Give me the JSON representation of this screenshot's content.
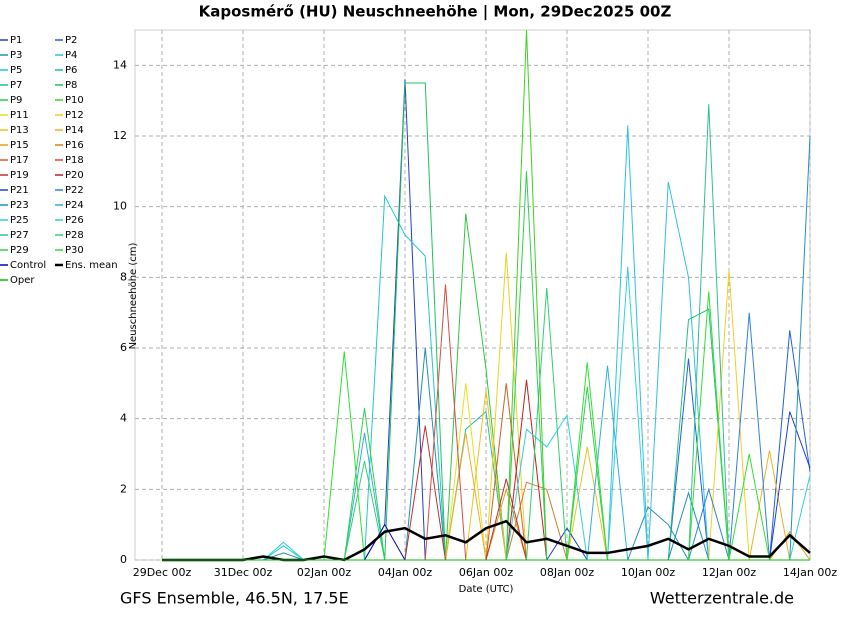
{
  "chart_data": {
    "type": "line",
    "title": "Kaposmérő  (HU)  Neuschneehöhe | Mon, 29Dec2025 00Z",
    "y_label": "Neuschneehöhe (cm)",
    "x_label": "Date (UTC)",
    "footer_left": "GFS Ensemble, 46.5N, 17.5E",
    "footer_right": "Wetterzentrale.de",
    "categories": [
      "29Dec 00z",
      null,
      null,
      null,
      "31Dec 00z",
      null,
      null,
      null,
      "02Jan 00z",
      null,
      null,
      null,
      "04Jan 00z",
      null,
      null,
      null,
      "06Jan 00z",
      null,
      null,
      null,
      "08Jan 00z",
      null,
      null,
      null,
      "10Jan 00z",
      null,
      null,
      null,
      "12Jan 00z",
      null,
      null,
      null,
      "14Jan 00z"
    ],
    "ylim": [
      0,
      15
    ],
    "yticks": [
      0,
      2,
      4,
      6,
      8,
      10,
      12,
      14
    ],
    "grid": true,
    "series": [
      {
        "name": "P1",
        "color": "#2040c0",
        "values": [
          0,
          0,
          0,
          0,
          0,
          0,
          0,
          0,
          0,
          0,
          0,
          1,
          13.6,
          0,
          0,
          0,
          0,
          0,
          0,
          0,
          0,
          0,
          0,
          0,
          0,
          0,
          0,
          0,
          0,
          0,
          0,
          0,
          0
        ]
      },
      {
        "name": "P2",
        "color": "#2060e0",
        "values": [
          0,
          0,
          0,
          0,
          0,
          0,
          0,
          0,
          0,
          0,
          0,
          0,
          0,
          0,
          0,
          0,
          0,
          0,
          0,
          0,
          0,
          0,
          0,
          0,
          0,
          0,
          5.7,
          0,
          0,
          0,
          0,
          6.5,
          2.5
        ]
      },
      {
        "name": "P3",
        "color": "#2090b0",
        "values": [
          0,
          0,
          0,
          0,
          0,
          0,
          0.2,
          0,
          0,
          0,
          0,
          0,
          0,
          6,
          0,
          0,
          0,
          0,
          0,
          0,
          0,
          0,
          0,
          0,
          1.5,
          1,
          0,
          0,
          0,
          0,
          0,
          0,
          0
        ]
      },
      {
        "name": "P4",
        "color": "#30c0e0",
        "values": [
          0,
          0,
          0,
          0,
          0,
          0,
          0,
          0,
          0,
          0,
          0,
          0,
          0,
          0,
          0,
          0,
          0,
          0,
          0,
          0,
          0,
          0,
          0,
          12.3,
          0,
          10.7,
          8,
          0,
          0,
          0,
          0,
          0,
          0
        ]
      },
      {
        "name": "P5",
        "color": "#20c8c8",
        "values": [
          0,
          0,
          0,
          0,
          0,
          0,
          0.4,
          0,
          0,
          0,
          0,
          10.3,
          9.2,
          8.6,
          0,
          0,
          0,
          0,
          0,
          0,
          0,
          0,
          0,
          0,
          0,
          0,
          0,
          0,
          0,
          0,
          0,
          0,
          0
        ]
      },
      {
        "name": "P6",
        "color": "#20c0a0",
        "values": [
          0,
          0,
          0,
          0,
          0,
          0,
          0,
          0,
          0,
          0,
          0,
          0,
          0,
          0,
          0,
          3.7,
          4.2,
          0,
          0,
          0,
          0,
          0,
          0,
          0,
          0,
          0,
          0,
          0,
          0,
          0,
          0,
          0,
          0
        ]
      },
      {
        "name": "P7",
        "color": "#20c080",
        "values": [
          0,
          0,
          0,
          0,
          0,
          0,
          0,
          0,
          0,
          0,
          0,
          0,
          0,
          0,
          0,
          0,
          0,
          0,
          0,
          0,
          0,
          0,
          0,
          0,
          0,
          0,
          6.8,
          7.1,
          0,
          0,
          0,
          0,
          0
        ]
      },
      {
        "name": "P8",
        "color": "#20c060",
        "values": [
          0,
          0,
          0,
          0,
          0,
          0,
          0,
          0,
          0,
          0,
          0,
          0,
          13.5,
          13.5,
          0,
          0,
          0,
          0,
          0,
          0,
          0,
          0,
          0,
          0,
          0,
          0,
          0,
          0,
          0,
          0,
          0,
          0,
          0
        ]
      },
      {
        "name": "P9",
        "color": "#30c840",
        "values": [
          0,
          0,
          0,
          0,
          0,
          0,
          0,
          0,
          0,
          0,
          0,
          0,
          0,
          0,
          0,
          9.8,
          5.4,
          0,
          0,
          0,
          0,
          0,
          0,
          0,
          0,
          0,
          0,
          0,
          0,
          0,
          0,
          0,
          0
        ]
      },
      {
        "name": "P10",
        "color": "#40d020",
        "values": [
          0,
          0,
          0,
          0,
          0,
          0,
          0,
          0,
          0,
          0,
          0,
          0,
          0,
          0,
          0,
          0,
          0,
          0,
          15,
          0,
          0,
          0,
          0,
          0,
          0,
          0,
          0,
          0,
          0,
          0,
          0,
          0,
          0
        ]
      },
      {
        "name": "P11",
        "color": "#e8e020",
        "values": [
          0,
          0,
          0,
          0,
          0,
          0,
          0,
          0,
          0,
          0,
          0,
          0,
          0,
          0,
          0,
          5,
          0,
          0,
          0,
          0,
          0,
          0,
          0,
          0,
          0,
          0,
          0,
          0,
          0,
          0,
          0,
          0,
          0
        ]
      },
      {
        "name": "P12",
        "color": "#f0d020",
        "values": [
          0,
          0,
          0,
          0,
          0,
          0,
          0,
          0,
          0,
          0,
          0,
          0,
          0,
          0,
          0,
          0,
          0,
          8.7,
          0,
          0,
          0,
          0,
          0,
          0,
          0,
          0,
          0,
          0,
          8.2,
          0,
          0,
          0,
          0
        ]
      },
      {
        "name": "P13",
        "color": "#f0c020",
        "values": [
          0,
          0,
          0,
          0,
          0,
          0,
          0,
          0,
          0,
          0,
          0,
          0,
          0,
          0,
          0,
          0,
          4.8,
          0,
          0,
          0,
          0,
          3.2,
          0,
          0,
          0,
          0,
          0,
          0,
          0,
          0,
          0,
          0,
          0
        ]
      },
      {
        "name": "P14",
        "color": "#f0b020",
        "values": [
          0,
          0,
          0,
          0,
          0,
          0,
          0,
          0,
          0,
          0,
          0,
          0,
          0,
          0,
          0,
          3.6,
          0,
          0,
          0,
          0,
          0,
          0,
          0,
          0,
          0,
          0,
          0,
          0,
          0,
          0,
          3.1,
          0,
          0
        ]
      },
      {
        "name": "P15",
        "color": "#e0a020",
        "values": [
          0,
          0,
          0,
          0,
          0,
          0,
          0,
          0,
          0,
          0,
          0,
          0,
          0,
          0,
          0,
          0,
          0,
          2,
          0,
          0,
          0,
          0,
          0,
          0,
          0,
          0,
          0,
          0,
          0,
          0,
          0,
          0.8,
          0
        ]
      },
      {
        "name": "P16",
        "color": "#d08020",
        "values": [
          0,
          0,
          0,
          0,
          0,
          0,
          0,
          0,
          0,
          0,
          0,
          0,
          0,
          0,
          0,
          0,
          0,
          0,
          2.2,
          2,
          0,
          0,
          0,
          0,
          0,
          0,
          0,
          0,
          0,
          0,
          0,
          0,
          0
        ]
      },
      {
        "name": "P17",
        "color": "#d06020",
        "values": [
          0,
          0,
          0,
          0,
          0,
          0,
          0,
          0,
          0,
          0,
          0,
          0,
          0,
          0,
          0,
          0,
          0,
          5,
          0,
          0,
          0,
          0,
          0,
          0,
          0,
          0,
          0,
          0,
          0,
          0,
          0,
          0,
          0
        ]
      },
      {
        "name": "P18",
        "color": "#d05040",
        "values": [
          0,
          0,
          0,
          0,
          0,
          0,
          0,
          0,
          0,
          0,
          0,
          0,
          0,
          0,
          7.8,
          0,
          0,
          0,
          0,
          0,
          0,
          0,
          0,
          0,
          0,
          0,
          0,
          0,
          0,
          0,
          0,
          0,
          0
        ]
      },
      {
        "name": "P19",
        "color": "#c03030",
        "values": [
          0,
          0,
          0,
          0,
          0,
          0,
          0,
          0,
          0,
          0,
          0,
          0,
          0,
          3.8,
          0,
          0,
          0,
          2.3,
          0,
          0,
          0,
          0,
          0,
          0,
          0,
          0,
          0,
          0,
          0,
          0,
          0,
          0,
          0
        ]
      },
      {
        "name": "P20",
        "color": "#c02020",
        "values": [
          0,
          0,
          0,
          0,
          0,
          0,
          0,
          0,
          0,
          0,
          0,
          0,
          0,
          0,
          0,
          0,
          0,
          0,
          5.1,
          0,
          0,
          0,
          0,
          0,
          0,
          0,
          0,
          0,
          0,
          0,
          0,
          0,
          0
        ]
      },
      {
        "name": "P21",
        "color": "#2040d0",
        "values": [
          0,
          0,
          0,
          0,
          0,
          0,
          0,
          0,
          0,
          0,
          0,
          0,
          0,
          0,
          0,
          0,
          0,
          0,
          0,
          0,
          0.9,
          0,
          0,
          0,
          0,
          0,
          0,
          0,
          0,
          0,
          0,
          4.2,
          2.6
        ]
      },
      {
        "name": "P22",
        "color": "#3080e0",
        "values": [
          0,
          0,
          0,
          0,
          0,
          0,
          0,
          0,
          0,
          0,
          0,
          0,
          0,
          0,
          0,
          0,
          0,
          0,
          0,
          0,
          0,
          0,
          0,
          0,
          0,
          0,
          0,
          2,
          0,
          7,
          0,
          0,
          0
        ]
      },
      {
        "name": "P23",
        "color": "#2090c0",
        "values": [
          0,
          0,
          0,
          0,
          0,
          0,
          0,
          0,
          0,
          0,
          0,
          0,
          0,
          0,
          0,
          0,
          0,
          0,
          0,
          0,
          0,
          0,
          0,
          0,
          0,
          0,
          1.9,
          0,
          0,
          0,
          0,
          0,
          12
        ]
      },
      {
        "name": "P24",
        "color": "#30b0e0",
        "values": [
          0,
          0,
          0,
          0,
          0,
          0,
          0,
          0,
          0,
          0,
          3.6,
          0,
          0,
          0,
          0,
          0,
          0,
          0,
          0,
          0,
          0,
          0,
          5.5,
          0,
          0,
          0,
          0,
          0,
          0,
          0,
          0,
          0,
          0
        ]
      },
      {
        "name": "P25",
        "color": "#30d0e0",
        "values": [
          0,
          0,
          0,
          0,
          0,
          0,
          0.5,
          0,
          0,
          0,
          0,
          0,
          0,
          0,
          0,
          0,
          0,
          0,
          3.7,
          3.2,
          4.1,
          0,
          0,
          8.3,
          0,
          0,
          0,
          0,
          0,
          0,
          0,
          0,
          2.4
        ]
      },
      {
        "name": "P26",
        "color": "#30d0c0",
        "values": [
          0,
          0,
          0,
          0,
          0,
          0,
          0,
          0,
          0,
          0,
          0,
          0,
          0,
          0,
          0,
          0,
          0,
          0,
          0,
          0,
          0,
          0,
          0,
          0,
          0,
          0,
          0,
          0,
          0,
          0,
          0,
          0,
          0
        ]
      },
      {
        "name": "P27",
        "color": "#30c090",
        "values": [
          0,
          0,
          0,
          0,
          0,
          0,
          0,
          0,
          0,
          0,
          0,
          0,
          0,
          0,
          0,
          0,
          0,
          0,
          0,
          0,
          0,
          0,
          0,
          0,
          0,
          0,
          0,
          12.9,
          0,
          0,
          0,
          0,
          0
        ]
      },
      {
        "name": "P28",
        "color": "#30d070",
        "values": [
          0,
          0,
          0,
          0,
          0,
          0,
          0,
          0,
          0,
          0,
          2.8,
          0,
          0,
          0,
          0,
          0,
          0,
          0,
          0,
          7.7,
          0,
          0,
          0,
          0,
          0,
          0,
          0,
          0,
          0,
          0,
          0,
          0,
          0
        ]
      },
      {
        "name": "P29",
        "color": "#30d050",
        "values": [
          0,
          0,
          0,
          0,
          0,
          0,
          0,
          0,
          0,
          0,
          4.3,
          0,
          0,
          0,
          0,
          0,
          0,
          0,
          11,
          0,
          0,
          4.9,
          0,
          0,
          0,
          0,
          0,
          0,
          0,
          0,
          0,
          0,
          0
        ]
      },
      {
        "name": "P30",
        "color": "#30e030",
        "values": [
          0,
          0,
          0,
          0,
          0,
          0,
          0,
          0,
          0,
          5.9,
          0,
          0,
          0,
          0,
          0,
          0,
          0,
          0,
          0,
          0,
          0,
          5.6,
          0,
          0,
          0,
          0,
          0,
          7.6,
          0,
          3,
          0,
          0,
          0
        ]
      },
      {
        "name": "Control",
        "color": "#0000c0",
        "values": [
          0,
          0,
          0,
          0,
          0,
          0,
          0,
          0,
          0,
          0,
          0,
          1,
          0,
          0,
          0,
          0,
          0,
          0,
          0,
          0,
          0,
          0,
          0,
          0,
          0,
          0,
          0,
          0,
          0,
          0,
          0,
          0,
          0
        ]
      },
      {
        "name": "Ens. mean",
        "color": "#000000",
        "values": [
          0,
          0,
          0,
          0,
          0,
          0.1,
          0,
          0,
          0.1,
          0,
          0.3,
          0.8,
          0.9,
          0.6,
          0.7,
          0.5,
          0.9,
          1.1,
          0.5,
          0.6,
          0.4,
          0.2,
          0.2,
          0.3,
          0.4,
          0.6,
          0.3,
          0.6,
          0.4,
          0.1,
          0.1,
          0.7,
          0.2
        ]
      },
      {
        "name": "Oper",
        "color": "#00c000",
        "values": [
          0,
          0,
          0,
          0,
          0,
          0,
          0,
          0,
          0,
          0,
          0,
          0,
          0,
          0,
          0,
          0,
          0,
          0,
          0,
          0,
          0,
          0,
          0,
          0,
          0,
          0,
          0,
          0,
          0,
          0,
          0,
          0,
          0
        ]
      }
    ]
  }
}
